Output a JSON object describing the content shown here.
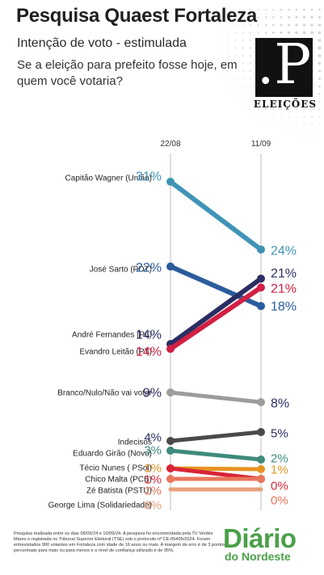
{
  "header": {
    "title": "Pesquisa Quaest Fortaleza",
    "subtitle": "Intenção de voto - estimulada",
    "question": "Se a eleição para prefeito fosse hoje, em quem você votaria?"
  },
  "logo": {
    "letter": ".P",
    "label": "ELEIÇÕES",
    "icon": "p-logo-icon"
  },
  "footer": {
    "note": "Pesquisa realizada entre os dias 08/09/24 e 10/09/24. A pesquisa foi encomendada pela TV Verdes Mares e registrada no Tribunal Superior Eleitoral (TSE) sob o protocolo nº CE-05405/2024. Foram entrevistados 900 votantes em Fortaleza com idade de 16 anos ou mais. A margem de erro é de 3 pontos percentuais para mais ou para menos e o nível de confiança utilizado é de 95%.",
    "brand_line1": "Diário",
    "brand_line2": "do Nordeste",
    "brand_color": "#4aa049"
  },
  "chart_data": {
    "type": "line",
    "style": "slope",
    "x": [
      "22/08",
      "11/09"
    ],
    "ylim": [
      0,
      33
    ],
    "series": [
      {
        "name": "Capitão Wagner (União)",
        "values": [
          31,
          24
        ],
        "labels": [
          "31%",
          "24%"
        ],
        "color": "#3f94b6",
        "label_color": "#3f94b6"
      },
      {
        "name": "José Sarto (PDT)",
        "values": [
          22,
          18
        ],
        "labels": [
          "22%",
          "18%"
        ],
        "color": "#2b5c9c",
        "label_color": "#2b5c9c"
      },
      {
        "name": "André Fernandes (PL)",
        "values": [
          14,
          21
        ],
        "labels": [
          "14%",
          "21%"
        ],
        "color": "#2b2e63",
        "label_color": "#2b2e63"
      },
      {
        "name": "Evandro Leitão (PT)",
        "values": [
          14,
          21
        ],
        "labels": [
          "14%",
          "21%"
        ],
        "color": "#d21f43",
        "label_color": "#d21f43"
      },
      {
        "name": "Branco/Nulo/Não vai votar",
        "values": [
          9,
          8
        ],
        "labels": [
          "9%",
          "8%"
        ],
        "color": "#9c9c9c",
        "label_color": "#2b2e63"
      },
      {
        "name": "Indecisos",
        "values": [
          4,
          5
        ],
        "labels": [
          "4%",
          "5%"
        ],
        "color": "#4a4a4a",
        "label_color": "#2b2e63"
      },
      {
        "name": "Eduardo Girão (Novo)",
        "values": [
          3,
          2
        ],
        "labels": [
          "3%",
          "2%"
        ],
        "color": "#3e8a7c",
        "label_color": "#3e8a7c"
      },
      {
        "name": "Técio Nunes ( PSol)",
        "values": [
          1,
          1
        ],
        "labels": [
          "1%",
          "1%"
        ],
        "color": "#e69322",
        "label_color": "#e69322"
      },
      {
        "name": "Chico Malta (PCB)",
        "values": [
          1,
          0
        ],
        "labels": [
          "1%",
          "0%"
        ],
        "color": "#d82536",
        "label_color": "#d82536"
      },
      {
        "name": "Zé Batista (PSTU)",
        "values": [
          1,
          0
        ],
        "labels": [
          "1%",
          "0%"
        ],
        "color": "#e9775d",
        "label_color": "#e9775d"
      },
      {
        "name": "George Lima (Solidariedade)",
        "values": [
          0,
          0
        ],
        "labels": [
          "0%",
          ""
        ],
        "color": "#e9a07a",
        "label_color": "#e9a07a"
      }
    ]
  }
}
